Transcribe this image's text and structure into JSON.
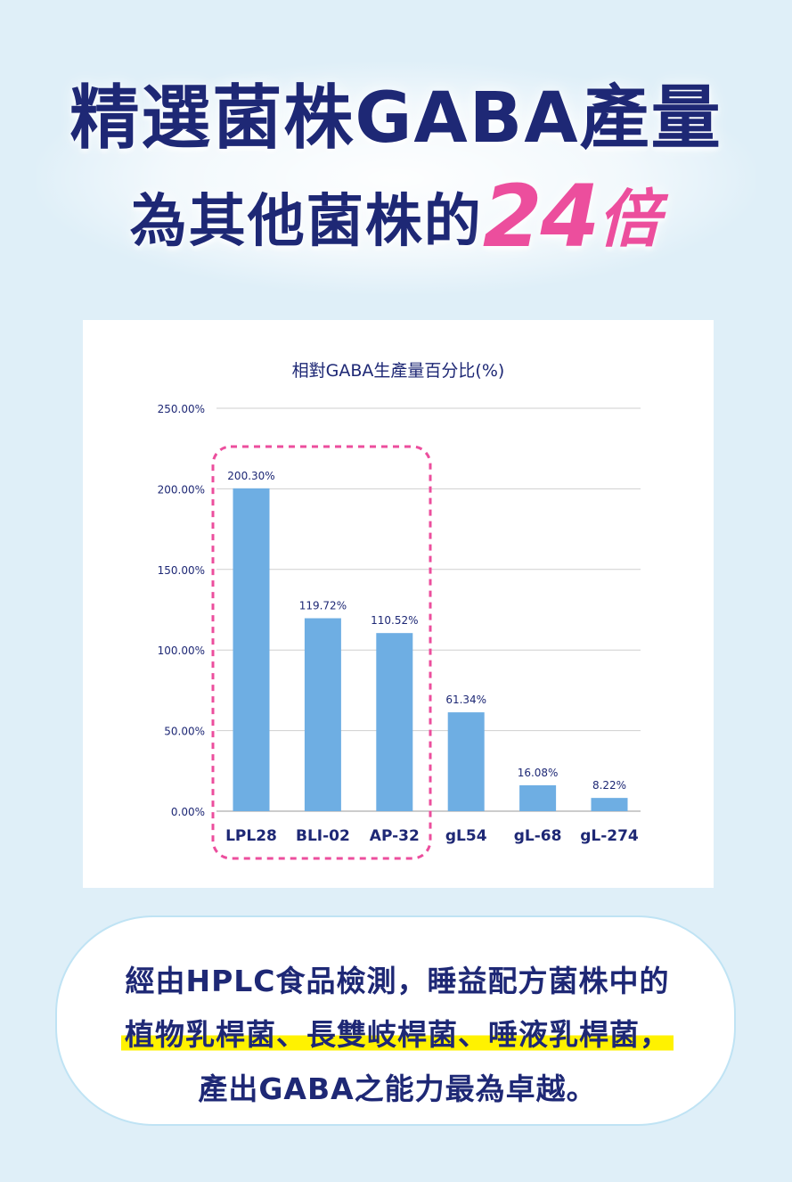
{
  "headline": {
    "line1": "精選菌株GABA產量",
    "line2_prefix": "為其他菌株的",
    "line2_number": "24",
    "line2_suffix": "倍"
  },
  "colors": {
    "headline": "#1e2875",
    "accent_pink": "#ec4e9d",
    "bar": "#6eaee3",
    "highlight_box": "#ec4e9d",
    "marker_yellow": "#fff200",
    "background": "#dfeff8"
  },
  "chart_data": {
    "type": "bar",
    "title": "相對GABA生產量百分比(%)",
    "categories": [
      "LPL28",
      "BLI-02",
      "AP-32",
      "gL54",
      "gL-68",
      "gL-274"
    ],
    "values": [
      200.3,
      119.72,
      110.52,
      61.34,
      16.08,
      8.22
    ],
    "value_labels": [
      "200.30%",
      "119.72%",
      "110.52%",
      "61.34%",
      "16.08%",
      "8.22%"
    ],
    "yticks": [
      "0.00%",
      "50.00%",
      "100.00%",
      "150.00%",
      "200.00%",
      "250.00%"
    ],
    "ylim": [
      0,
      250
    ],
    "grid": true,
    "highlighted_categories": [
      "LPL28",
      "BLI-02",
      "AP-32"
    ]
  },
  "note": {
    "line1": "經由HPLC食品檢測，睡益配方菌株中的",
    "line2": "植物乳桿菌、長雙岐桿菌、唾液乳桿菌，",
    "line3": "產出GABA之能力最為卓越。"
  }
}
